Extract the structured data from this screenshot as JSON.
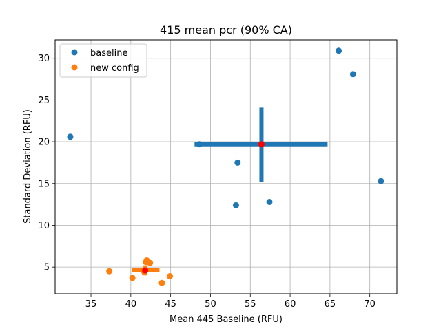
{
  "chart_data": {
    "type": "scatter",
    "title": "415 mean pcr (90% CA)",
    "xlabel": "Mean 445 Baseline (RFU)",
    "ylabel": "Standard Deviation (RFU)",
    "xlim": [
      30.5,
      73.4
    ],
    "ylim": [
      1.8,
      32.2
    ],
    "xticks": [
      35,
      40,
      45,
      50,
      55,
      60,
      65,
      70
    ],
    "yticks": [
      5,
      10,
      15,
      20,
      25,
      30
    ],
    "grid": true,
    "legend_position": "top-left",
    "series": [
      {
        "name": "baseline",
        "color": "#1f77b4",
        "points": [
          [
            32.4,
            20.6
          ],
          [
            48.6,
            19.7
          ],
          [
            53.4,
            17.5
          ],
          [
            53.2,
            12.4
          ],
          [
            57.4,
            12.8
          ],
          [
            66.1,
            30.9
          ],
          [
            67.9,
            28.1
          ],
          [
            71.4,
            15.3
          ]
        ],
        "center": [
          56.4,
          19.7
        ],
        "xerr": [
          48.0,
          64.7
        ],
        "yerr": [
          15.2,
          24.1
        ]
      },
      {
        "name": "new config",
        "color": "#ff7f0e",
        "points": [
          [
            37.3,
            4.5
          ],
          [
            40.2,
            3.7
          ],
          [
            41.9,
            5.6
          ],
          [
            42.0,
            5.8
          ],
          [
            42.4,
            5.5
          ],
          [
            41.7,
            4.4
          ],
          [
            44.9,
            3.9
          ],
          [
            43.9,
            3.1
          ]
        ],
        "center": [
          41.8,
          4.6
        ],
        "xerr": [
          40.1,
          43.6
        ],
        "yerr": [
          4.0,
          5.2
        ]
      }
    ],
    "center_color": "#ff0000"
  }
}
